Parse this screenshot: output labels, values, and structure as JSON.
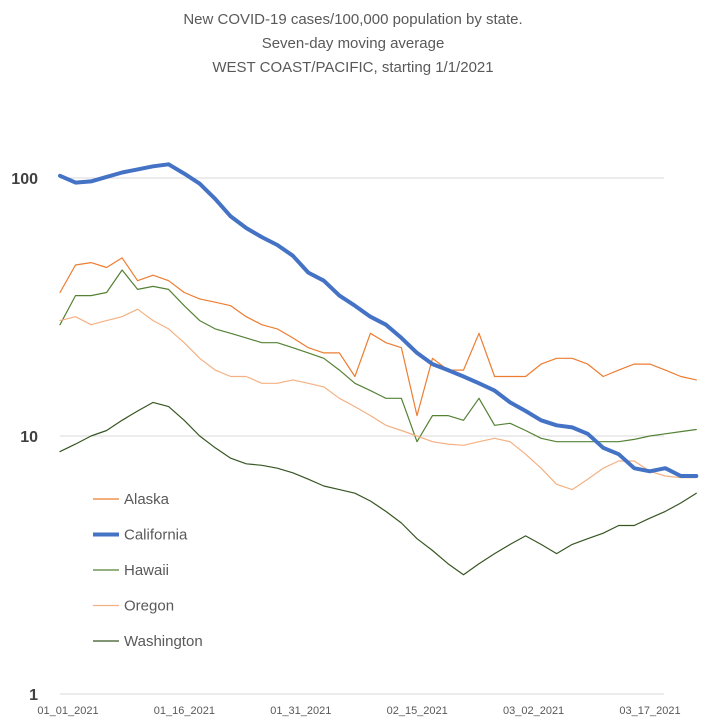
{
  "chart_data": {
    "type": "line",
    "title_lines": [
      "New COVID-19 cases/100,000 population by state.",
      "Seven-day moving average",
      "WEST COAST/PACIFIC, starting 1/1/2021"
    ],
    "y_scale": "log",
    "ylim": [
      1,
      100
    ],
    "y_ticks": [
      "100",
      "10",
      "1"
    ],
    "x_ticks": [
      "01_01_2021",
      "01_16_2021",
      "01_31_2021",
      "02_15_2021",
      "03_02_2021",
      "03_17_2021"
    ],
    "x_dates": [
      "2021-01-01",
      "2021-01-03",
      "2021-01-05",
      "2021-01-07",
      "2021-01-09",
      "2021-01-11",
      "2021-01-13",
      "2021-01-15",
      "2021-01-17",
      "2021-01-19",
      "2021-01-21",
      "2021-01-23",
      "2021-01-25",
      "2021-01-27",
      "2021-01-29",
      "2021-01-31",
      "2021-02-02",
      "2021-02-04",
      "2021-02-06",
      "2021-02-08",
      "2021-02-10",
      "2021-02-12",
      "2021-02-14",
      "2021-02-16",
      "2021-02-18",
      "2021-02-20",
      "2021-02-22",
      "2021-02-24",
      "2021-02-26",
      "2021-02-28",
      "2021-03-02",
      "2021-03-04",
      "2021-03-06",
      "2021-03-08",
      "2021-03-10",
      "2021-03-12",
      "2021-03-14",
      "2021-03-16",
      "2021-03-18",
      "2021-03-20",
      "2021-03-22",
      "2021-03-24"
    ],
    "grid": true,
    "legend_position": "bottom-left",
    "series": [
      {
        "name": "Alaska",
        "color": "#ED7D31",
        "width": 1.2,
        "values": [
          36,
          46,
          47,
          45,
          49,
          40,
          42,
          40,
          36,
          34,
          33,
          32,
          29,
          27,
          26,
          24,
          22,
          21,
          21,
          17,
          25,
          23,
          22,
          12,
          20,
          18,
          18,
          25,
          17,
          17,
          17,
          19,
          20,
          20,
          19,
          17,
          18,
          19,
          19,
          18,
          17,
          16.5
        ]
      },
      {
        "name": "California",
        "color": "#4472C4",
        "width": 4,
        "values": [
          102,
          96,
          97,
          101,
          105,
          108,
          111,
          113,
          104,
          95,
          83,
          71,
          64,
          59,
          55,
          50,
          43,
          40,
          35,
          32,
          29,
          27,
          24,
          21,
          19,
          18,
          17,
          16,
          15,
          13.5,
          12.5,
          11.5,
          11,
          10.8,
          10.2,
          9,
          8.5,
          7.5,
          7.3,
          7.5,
          7,
          7
        ]
      },
      {
        "name": "Hawaii",
        "color": "#548235",
        "width": 1.2,
        "values": [
          27,
          35,
          35,
          36,
          44,
          37,
          38,
          37,
          32,
          28,
          26,
          25,
          24,
          23,
          23,
          22,
          21,
          20,
          18,
          16,
          15,
          14,
          14,
          9.5,
          12,
          12,
          11.5,
          14,
          11,
          11.2,
          10.5,
          9.8,
          9.5,
          9.5,
          9.5,
          9.5,
          9.5,
          9.7,
          10,
          10.2,
          10.4,
          10.6
        ]
      },
      {
        "name": "Oregon",
        "color": "#F4B183",
        "width": 1.2,
        "values": [
          28,
          29,
          27,
          28,
          29,
          31,
          28,
          26,
          23,
          20,
          18,
          17,
          17,
          16,
          16,
          16.5,
          16,
          15.5,
          14,
          13,
          12,
          11,
          10.5,
          10,
          9.5,
          9.3,
          9.2,
          9.5,
          9.8,
          9.5,
          8.5,
          7.5,
          6.5,
          6.2,
          6.8,
          7.5,
          8,
          8,
          7.3,
          7,
          6.9,
          6.9
        ]
      },
      {
        "name": "Washington",
        "color": "#375623",
        "width": 1.2,
        "values": [
          8.7,
          9.3,
          10,
          10.5,
          11.5,
          12.5,
          13.5,
          13,
          11.5,
          10,
          9,
          8.2,
          7.8,
          7.7,
          7.5,
          7.2,
          6.8,
          6.4,
          6.2,
          6,
          5.6,
          5.1,
          4.6,
          4,
          3.6,
          3.2,
          2.9,
          3.2,
          3.5,
          3.8,
          4.1,
          3.8,
          3.5,
          3.8,
          4,
          4.2,
          4.5,
          4.5,
          4.8,
          5.1,
          5.5,
          6
        ]
      }
    ]
  }
}
